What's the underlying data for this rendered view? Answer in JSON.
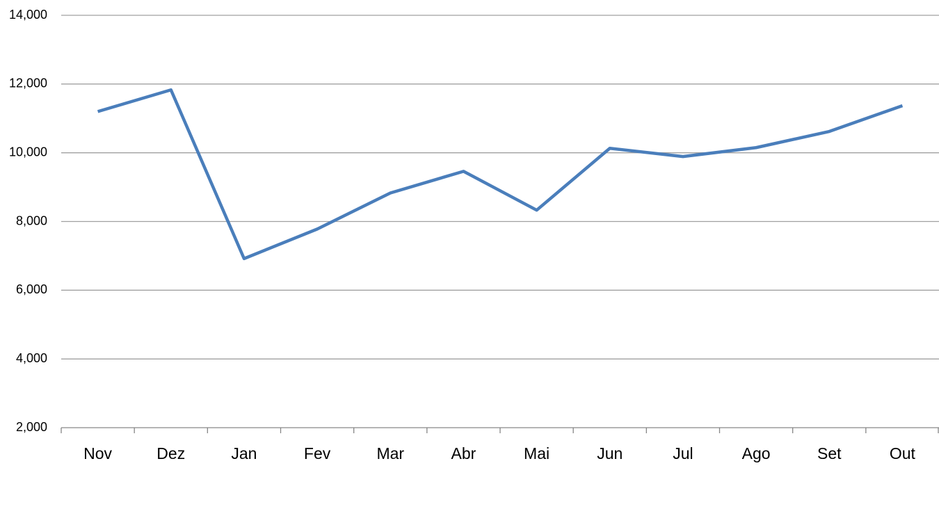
{
  "chart_data": {
    "type": "line",
    "categories": [
      "Nov",
      "Dez",
      "Jan",
      "Fev",
      "Mar",
      "Abr",
      "Mai",
      "Jun",
      "Jul",
      "Ago",
      "Set",
      "Out"
    ],
    "values": [
      11200,
      11830,
      6920,
      7780,
      8830,
      9460,
      8330,
      10130,
      9890,
      10150,
      10620,
      11370
    ],
    "color": "#4a7ebb",
    "ylim": [
      2000,
      14000
    ],
    "yticks": [
      {
        "value": 2000,
        "label": "2,000"
      },
      {
        "value": 4000,
        "label": "4,000"
      },
      {
        "value": 6000,
        "label": "6,000"
      },
      {
        "value": 8000,
        "label": "8,000"
      },
      {
        "value": 10000,
        "label": "10,000"
      },
      {
        "value": 12000,
        "label": "12,000"
      },
      {
        "value": 14000,
        "label": "14,000"
      }
    ],
    "grid": true
  }
}
